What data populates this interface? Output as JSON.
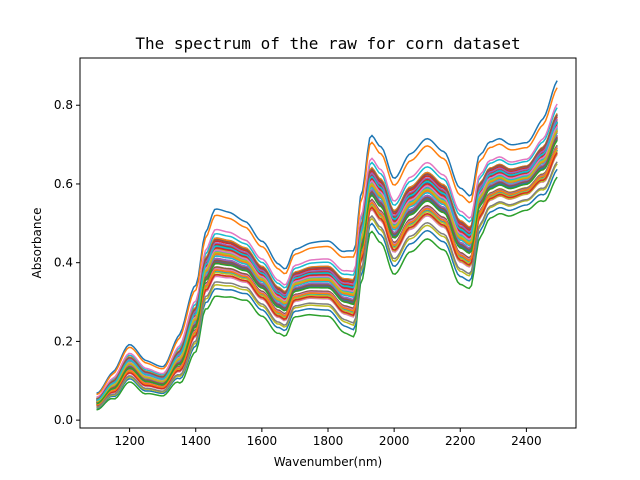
{
  "chart_data": {
    "type": "line",
    "title": "The spectrum of the raw for corn dataset",
    "xlabel": "Wavenumber(nm)",
    "ylabel": "Absorbance",
    "xlim": [
      1050,
      2550
    ],
    "ylim": [
      -0.02,
      0.92
    ],
    "xticks": [
      1200,
      1400,
      1600,
      1800,
      2000,
      2200,
      2400
    ],
    "yticks": [
      0.0,
      0.2,
      0.4,
      0.6,
      0.8
    ],
    "ytick_labels": [
      "0.0",
      "0.2",
      "0.4",
      "0.6",
      "0.8"
    ],
    "grid": false,
    "legend": "none",
    "series_count": 80,
    "wavenumber_range": [
      1100,
      2498
    ],
    "mean_spectrum": {
      "x": [
        1100,
        1150,
        1200,
        1250,
        1300,
        1350,
        1400,
        1430,
        1460,
        1500,
        1550,
        1600,
        1650,
        1670,
        1700,
        1750,
        1800,
        1850,
        1880,
        1900,
        1930,
        1960,
        2000,
        2050,
        2100,
        2150,
        2200,
        2230,
        2260,
        2290,
        2320,
        2350,
        2400,
        2450,
        2498
      ],
      "y": [
        0.045,
        0.085,
        0.14,
        0.105,
        0.095,
        0.15,
        0.25,
        0.37,
        0.415,
        0.41,
        0.395,
        0.35,
        0.3,
        0.29,
        0.34,
        0.35,
        0.35,
        0.315,
        0.31,
        0.45,
        0.59,
        0.56,
        0.48,
        0.54,
        0.575,
        0.545,
        0.455,
        0.44,
        0.56,
        0.6,
        0.61,
        0.6,
        0.61,
        0.65,
        0.73
      ]
    },
    "spread_profile": {
      "x": [
        1100,
        1200,
        1300,
        1400,
        1460,
        1600,
        1680,
        1800,
        1900,
        1930,
        2000,
        2100,
        2200,
        2300,
        2400,
        2498
      ],
      "spread": [
        0.02,
        0.045,
        0.035,
        0.08,
        0.105,
        0.09,
        0.08,
        0.09,
        0.105,
        0.115,
        0.115,
        0.12,
        0.115,
        0.09,
        0.08,
        0.115
      ]
    },
    "palette": [
      "#1f77b4",
      "#ff7f0e",
      "#2ca02c",
      "#d62728",
      "#9467bd",
      "#8c564b",
      "#e377c2",
      "#7f7f7f",
      "#bcbd22",
      "#17becf"
    ]
  }
}
